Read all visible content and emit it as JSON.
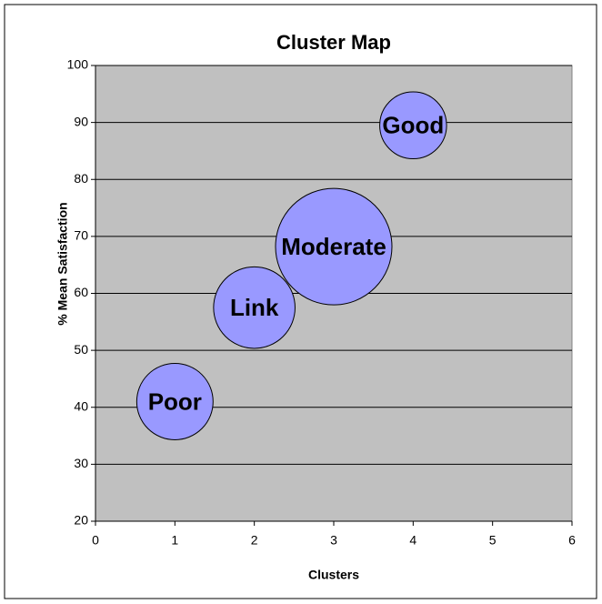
{
  "chart_data": {
    "type": "bubble",
    "title": "Cluster Map",
    "x_label": "Clusters",
    "y_label": "% Mean Satisfaction",
    "x": [
      1,
      2,
      3,
      4
    ],
    "values": [
      41,
      57.5,
      68.2,
      89.5
    ],
    "sizes": [
      43,
      49,
      100,
      33
    ],
    "point_labels": [
      "Poor",
      "Link",
      "Moderate",
      "Good"
    ],
    "color": "#9999ff",
    "plot_background": "#c0c0c0",
    "xlim": [
      0,
      6
    ],
    "xticks": [
      0,
      1,
      2,
      3,
      4,
      5,
      6
    ],
    "ylim": [
      20,
      100
    ],
    "yticks": [
      20,
      30,
      40,
      50,
      60,
      70,
      80,
      90,
      100
    ],
    "grid": true
  }
}
